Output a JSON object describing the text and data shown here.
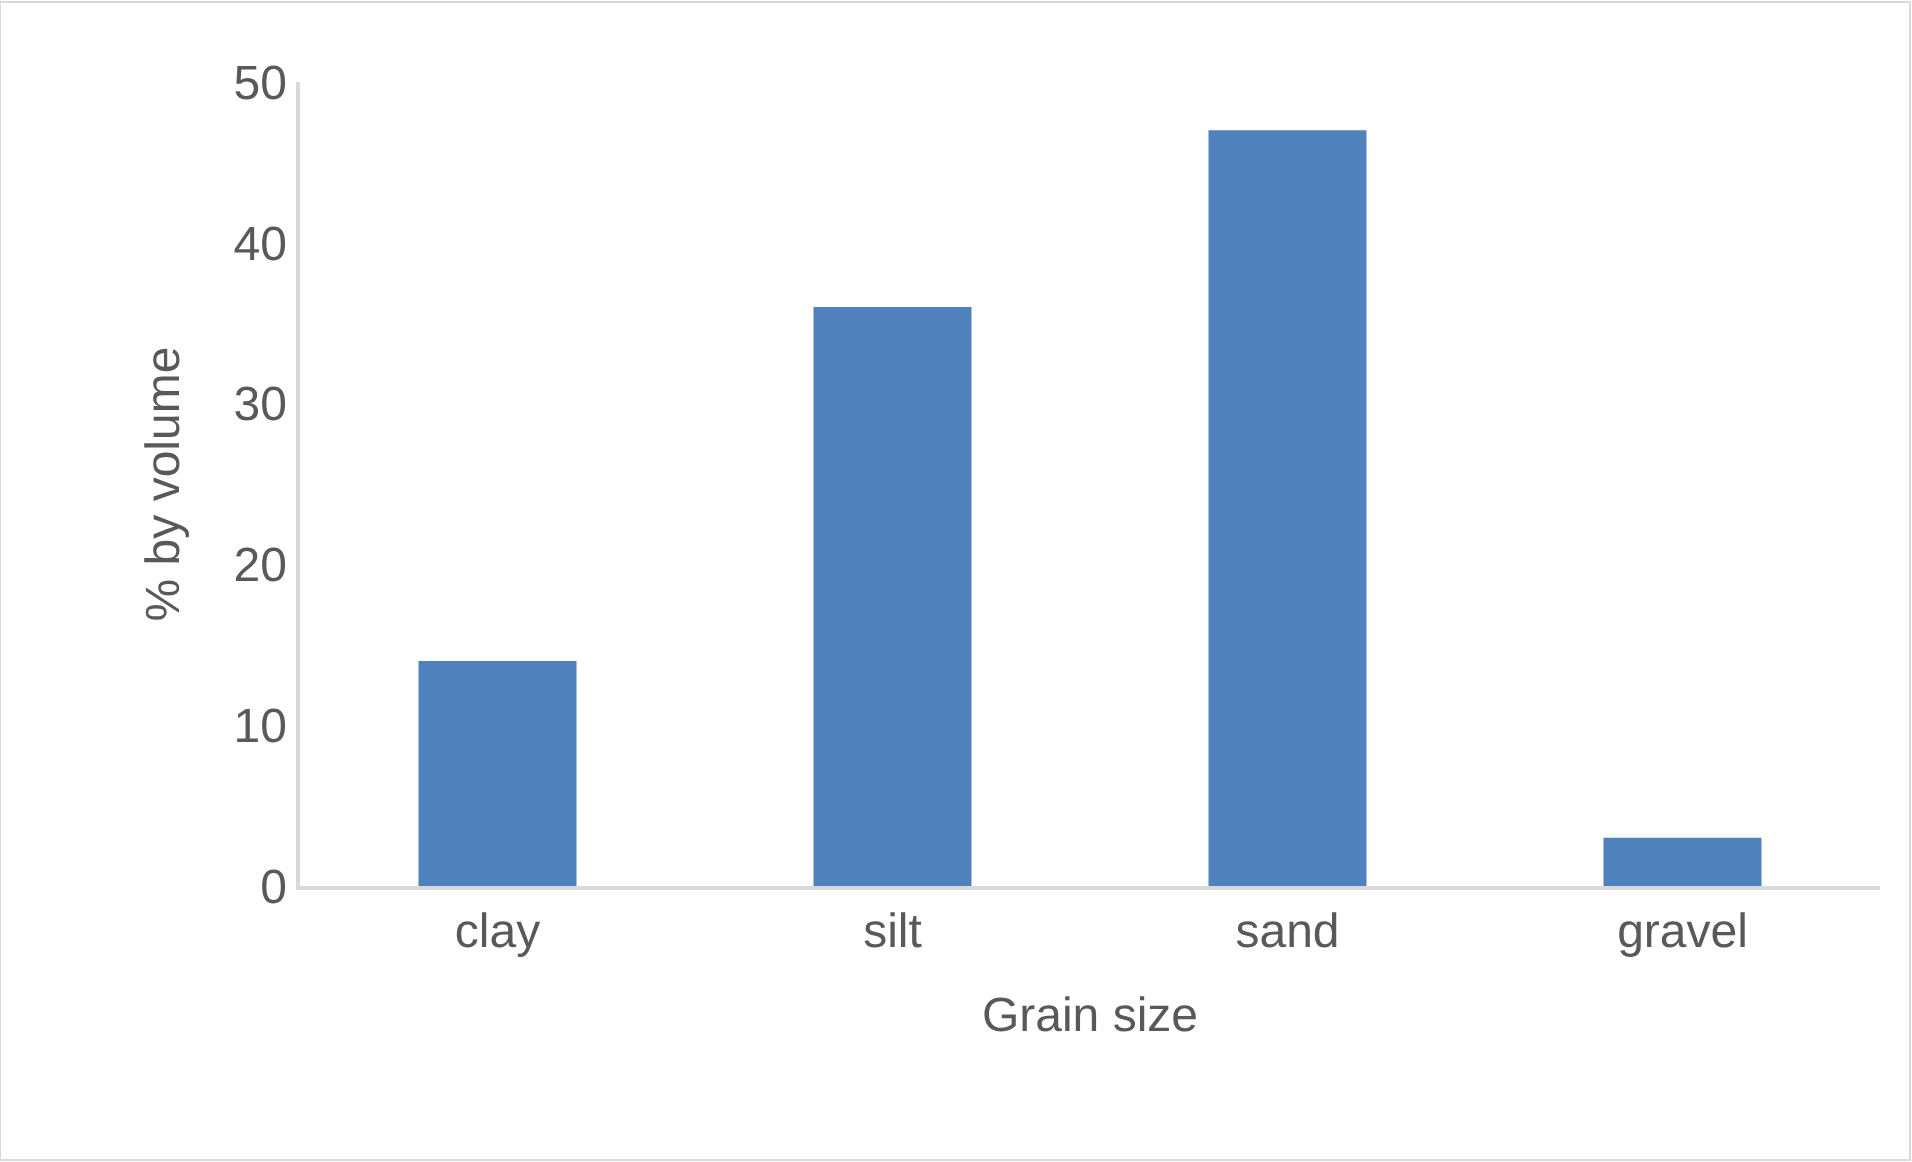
{
  "chart_data": {
    "type": "bar",
    "xlabel": "Grain size",
    "ylabel": "% by volume",
    "categories": [
      "clay",
      "silt",
      "sand",
      "gravel"
    ],
    "values": [
      14,
      36,
      47,
      3
    ],
    "color": "#4f81bd",
    "ylim": [
      0,
      50
    ],
    "yticks": [
      0,
      10,
      20,
      30,
      40,
      50
    ],
    "grid": false
  }
}
